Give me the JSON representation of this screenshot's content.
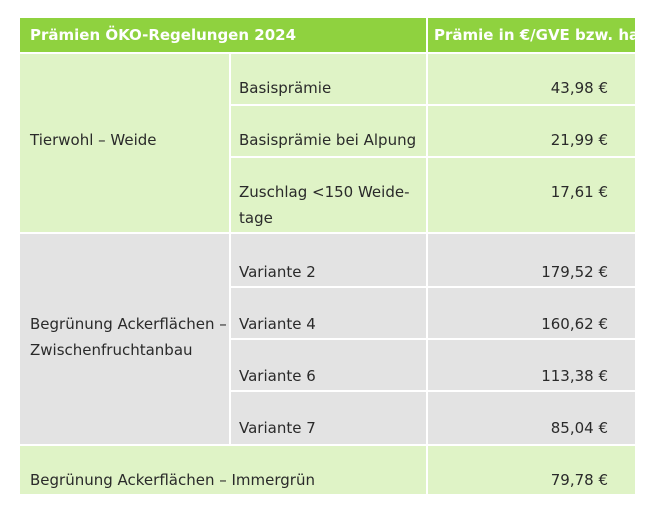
{
  "header": {
    "title": "Prämien ÖKO-Regelungen 2024",
    "value_col": "Prämie in €/GVE bzw. ha"
  },
  "groups": [
    {
      "name": "Tierwohl – Weide",
      "rows": [
        {
          "label": "Basisprämie",
          "value": "43,98 €"
        },
        {
          "label": "Basisprämie bei Alpung",
          "value": "21,99 €"
        },
        {
          "label_line1": "Zuschlag <150 Weide-",
          "label_line2": "tage",
          "value": "17,61 €"
        }
      ]
    },
    {
      "name_line1": "Begrünung Ackerflächen –",
      "name_line2": "Zwischenfruchtanbau",
      "rows": [
        {
          "label": "Variante 2",
          "value": "179,52 €"
        },
        {
          "label": "Variante 4",
          "value": "160,62 €"
        },
        {
          "label": "Variante 6",
          "value": "113,38 €"
        },
        {
          "label": "Variante 7",
          "value": "85,04 €"
        }
      ]
    },
    {
      "name": "Begrünung Ackerflächen – Immergrün",
      "value": "79,78 €"
    }
  ],
  "colors": {
    "header": "#8fd23f",
    "green_band": "#dff3c6",
    "gray_band": "#e3e3e3"
  }
}
